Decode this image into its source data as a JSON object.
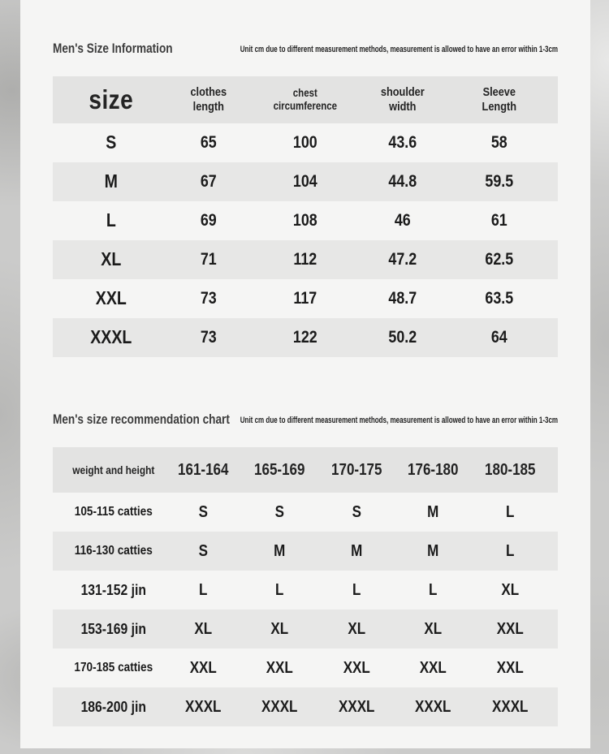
{
  "colors": {
    "page_texture_gray": "#cbcbca",
    "panel_background": "#f5f5f4",
    "table_header_gray": "#e3e3e2",
    "alt_row_gray": "#e7e7e6",
    "text_dark": "#1b1b1b",
    "title_gray": "#3d3d3d"
  },
  "section1": {
    "title": "Men's Size Information",
    "unit_note": "Unit cm due to different measurement methods, measurement is allowed to have an error within 1-3cm",
    "table": {
      "headers": [
        "size",
        "clothes\nlength",
        "chest\ncircumference",
        "shoulder\nwidth",
        "Sleeve\nLength"
      ],
      "rows": [
        [
          "S",
          "65",
          "100",
          "43.6",
          "58"
        ],
        [
          "M",
          "67",
          "104",
          "44.8",
          "59.5"
        ],
        [
          "L",
          "69",
          "108",
          "46",
          "61"
        ],
        [
          "XL",
          "71",
          "112",
          "47.2",
          "62.5"
        ],
        [
          "XXL",
          "73",
          "117",
          "48.7",
          "63.5"
        ],
        [
          "XXXL",
          "73",
          "122",
          "50.2",
          "64"
        ]
      ]
    }
  },
  "section2": {
    "title": "Men's size recommendation chart",
    "unit_note": "Unit cm due to different measurement methods, measurement is allowed to have an error within 1-3cm",
    "table": {
      "headers": [
        "weight and height",
        "161-164",
        "165-169",
        "170-175",
        "176-180",
        "180-185"
      ],
      "rows": [
        [
          "105-115 catties",
          "S",
          "S",
          "S",
          "M",
          "L"
        ],
        [
          "116-130 catties",
          "S",
          "M",
          "M",
          "M",
          "L"
        ],
        [
          "131-152 jin",
          "L",
          "L",
          "L",
          "L",
          "XL"
        ],
        [
          "153-169 jin",
          "XL",
          "XL",
          "XL",
          "XL",
          "XXL"
        ],
        [
          "170-185 catties",
          "XXL",
          "XXL",
          "XXL",
          "XXL",
          "XXL"
        ],
        [
          "186-200 jin",
          "XXXL",
          "XXXL",
          "XXXL",
          "XXXL",
          "XXXL"
        ]
      ]
    }
  }
}
